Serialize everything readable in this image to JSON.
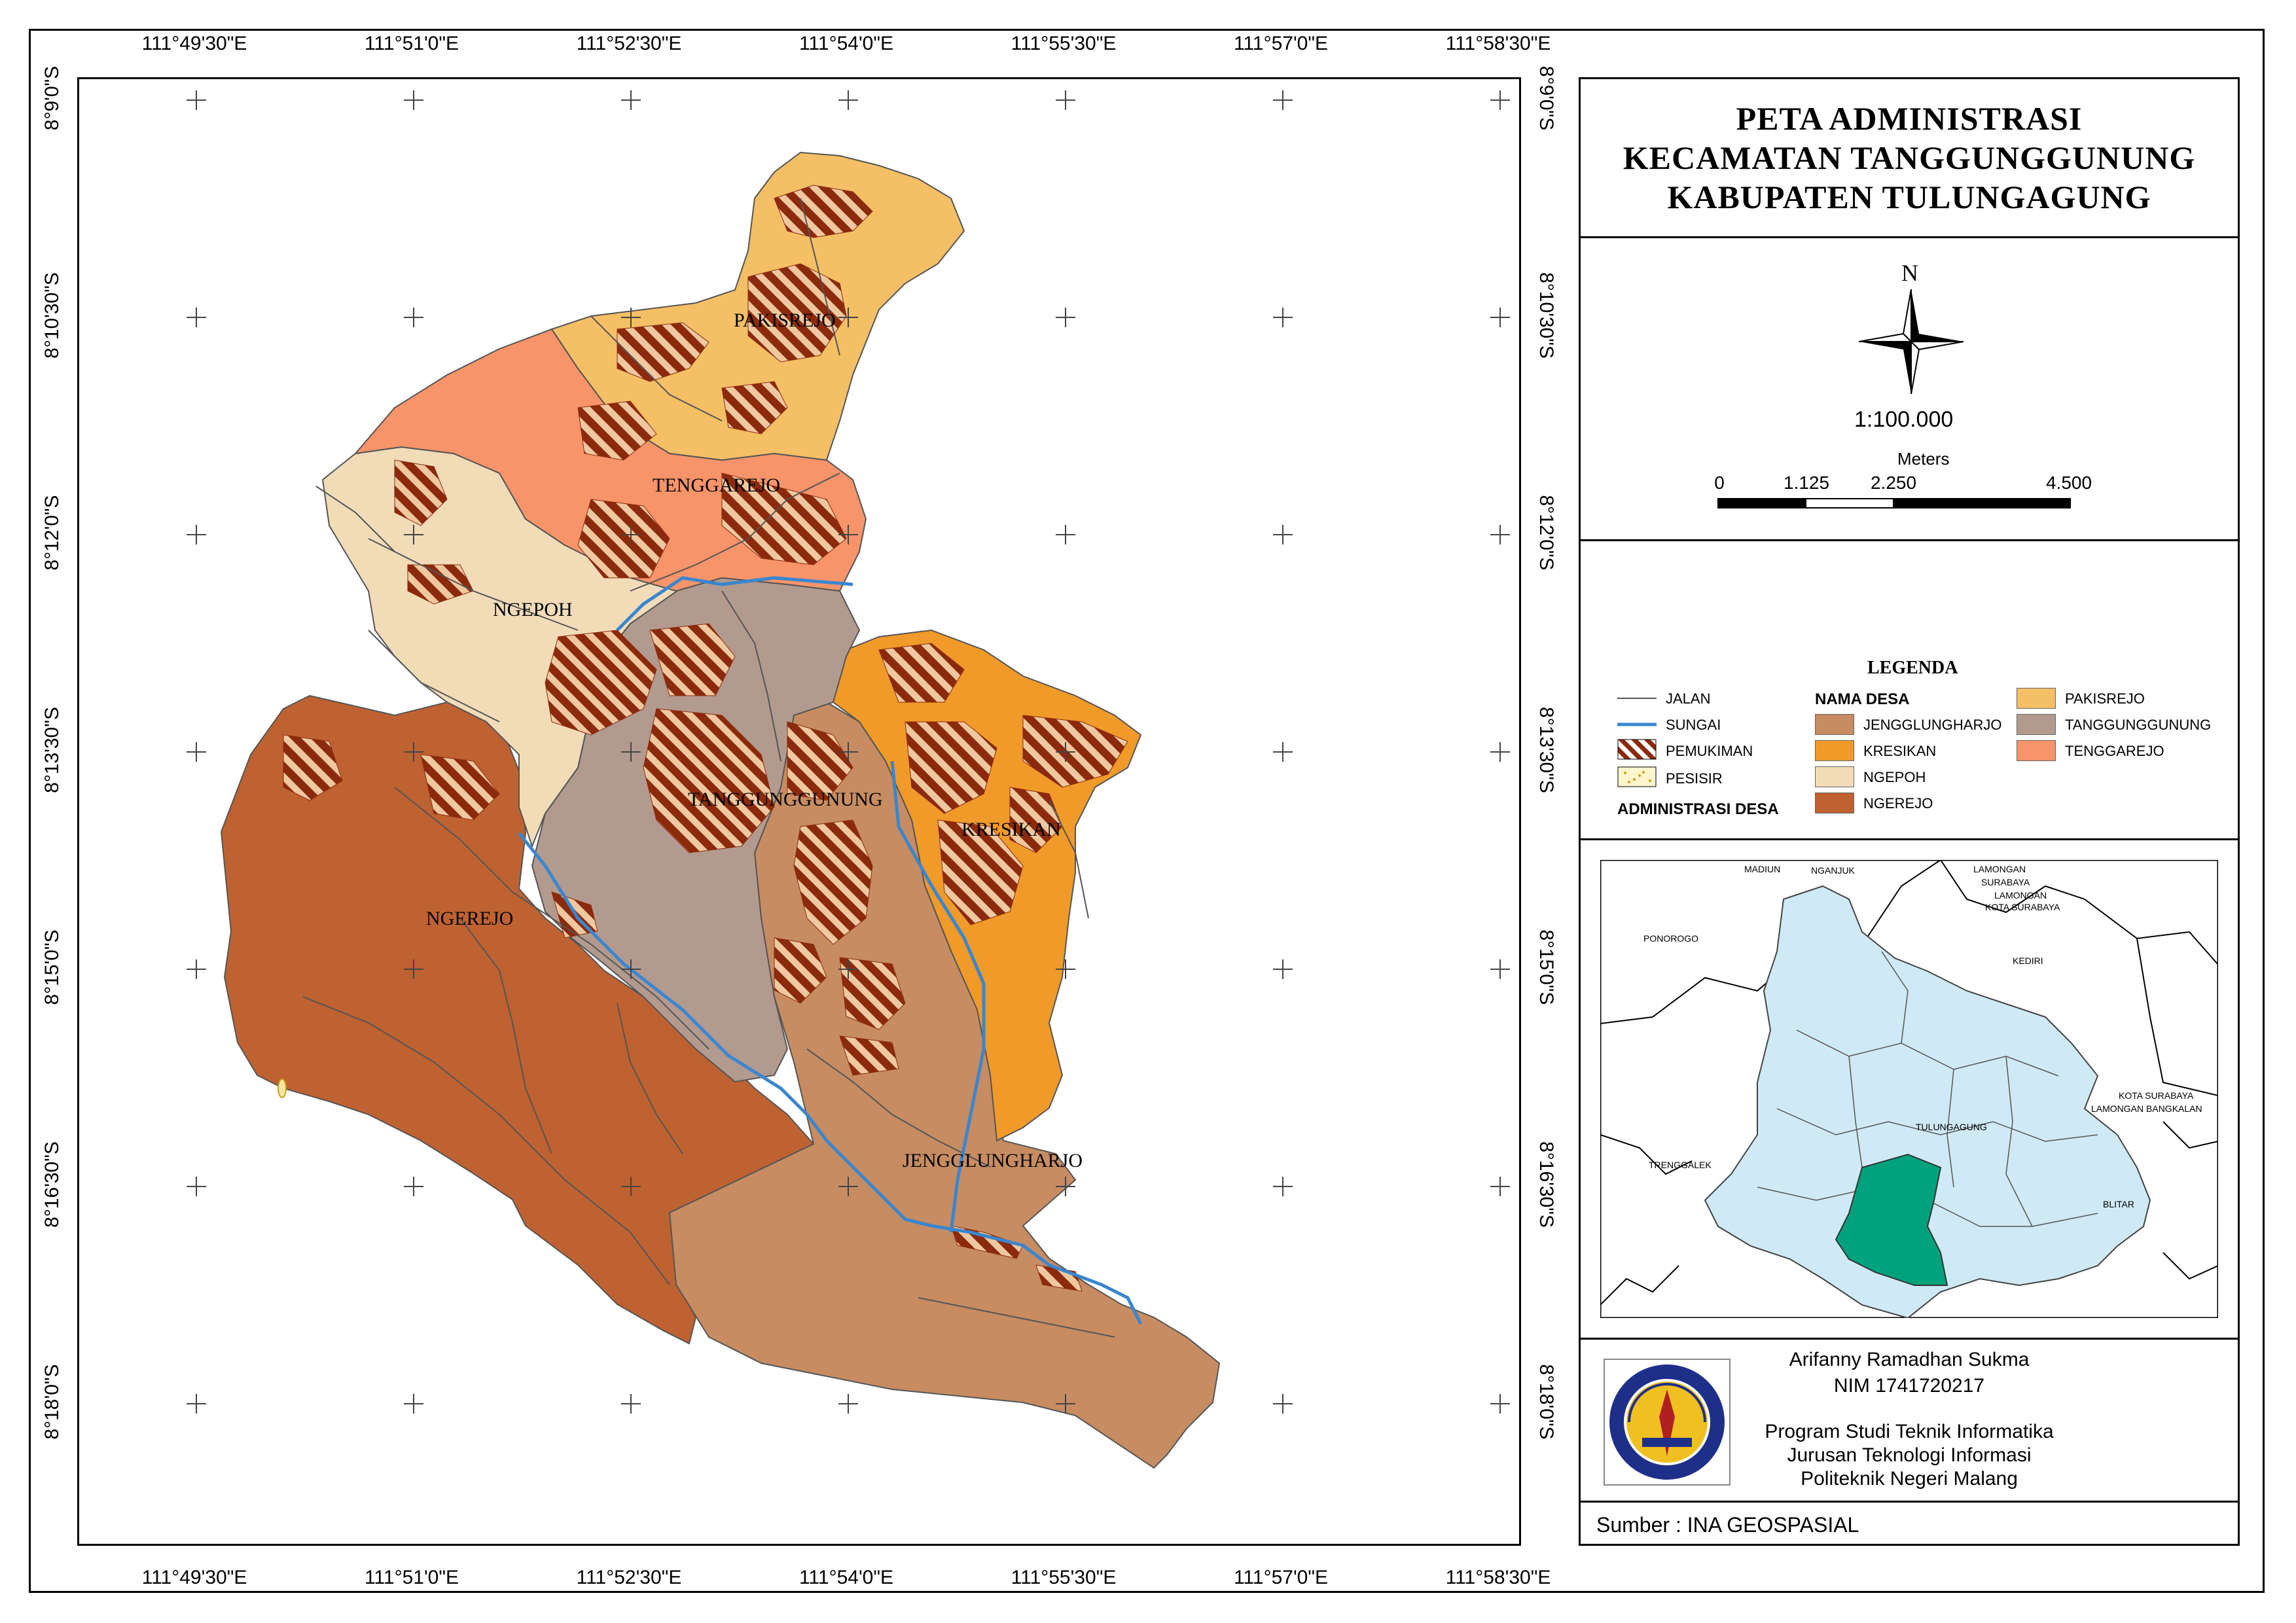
{
  "title": {
    "line1": "PETA ADMINISTRASI",
    "line2": "KECAMATAN TANGGUNGGUNUNG",
    "line3": "KABUPATEN TULUNGAGUNG"
  },
  "north_arrow": {
    "label": "N"
  },
  "scale": {
    "ratio": "1:100.000",
    "unit": "Meters",
    "ticks": [
      "0",
      "1.125",
      "2.250",
      "4.500"
    ]
  },
  "graticule": {
    "longitudes": [
      "111°49'30\"E",
      "111°51'0\"E",
      "111°52'30\"E",
      "111°54'0\"E",
      "111°55'30\"E",
      "111°57'0\"E",
      "111°58'30\"E"
    ],
    "latitudes": [
      "8°9'0\"S",
      "8°10'30\"S",
      "8°12'0\"S",
      "8°13'30\"S",
      "8°15'0\"S",
      "8°16'30\"S",
      "8°18'0\"S"
    ]
  },
  "map": {
    "villages": [
      {
        "name": "PAKISREJO",
        "label": "PAKISREJO",
        "color": "#f5bf66"
      },
      {
        "name": "TENGGAREJO",
        "label": "TENGGAREJO",
        "color": "#f7946a"
      },
      {
        "name": "NGEPOH",
        "label": "NGEPOH",
        "color": "#f2dcb8"
      },
      {
        "name": "TANGGUNGGUNUNG",
        "label": "TANGGUNGGUNUNG",
        "color": "#b39a8e"
      },
      {
        "name": "KRESIKAN",
        "label": "KRESIKAN",
        "color": "#f09a2a"
      },
      {
        "name": "NGEREJO",
        "label": "NGEREJO",
        "color": "#bf6231"
      },
      {
        "name": "JENGGLUNGHARJO",
        "label": "JENGGLUNGHARJO",
        "color": "#c78c62"
      }
    ],
    "river_color": "#3a86cf",
    "road_color": "#555555",
    "settlement_color": "#8b2a0c"
  },
  "legend": {
    "title": "LEGENDA",
    "items_lines": [
      {
        "label": "JALAN",
        "type": "road"
      },
      {
        "label": "SUNGAI",
        "type": "river"
      },
      {
        "label": "PEMUKIMAN",
        "type": "settlement"
      },
      {
        "label": "PESISIR",
        "type": "coast"
      }
    ],
    "admin_heading": "ADMINISTRASI DESA",
    "nama_desa_heading": "NAMA DESA",
    "desa_col1": [
      {
        "label": "JENGGLUNGHARJO",
        "color": "#c78c62"
      },
      {
        "label": "KRESIKAN",
        "color": "#f09a2a"
      },
      {
        "label": "NGEPOH",
        "color": "#f2dcb8"
      },
      {
        "label": "NGEREJO",
        "color": "#bf6231"
      }
    ],
    "desa_col2": [
      {
        "label": "PAKISREJO",
        "color": "#f5bf66"
      },
      {
        "label": "TANGGUNGGUNUNG",
        "color": "#b39a8e"
      },
      {
        "label": "TENGGAREJO",
        "color": "#f7946a"
      }
    ]
  },
  "inset": {
    "labels": [
      "MADIUN",
      "NGANJUK",
      "LAMONGAN",
      "SURABAYA",
      "LAMONGAN",
      "KOTA SURABAYA",
      "PONOROGO",
      "KEDIRI",
      "KOTA SURABAYA",
      "LAMONGAN BANGKALAN",
      "TULUNGAGUNG",
      "TRENGGALEK",
      "BLITAR"
    ],
    "regency_color": "#cfeaf5",
    "highlight_color": "#00a27e"
  },
  "author": {
    "name": "Arifanny Ramadhan Sukma",
    "nim": "NIM 1741720217",
    "program": "Program Studi Teknik Informatika",
    "department": "Jurusan Teknologi Informasi",
    "institution": "Politeknik Negeri Malang",
    "logo_text": "POLITEKNIK NEGERI MALANG"
  },
  "source": "Sumber : INA GEOSPASIAL"
}
